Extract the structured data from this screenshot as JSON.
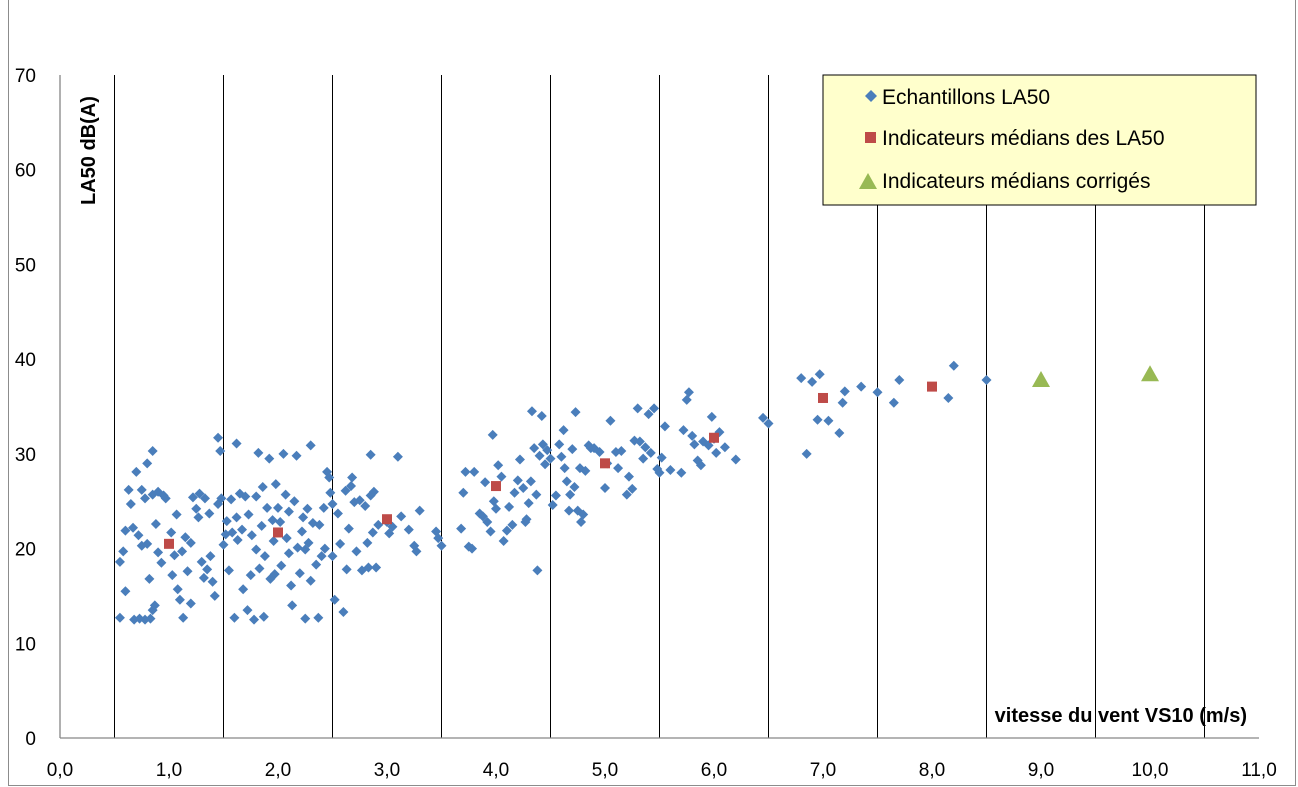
{
  "chart_data": {
    "type": "scatter",
    "title": "",
    "xlabel": "vitesse du vent  VS10 (m/s)",
    "ylabel": "LA50 dB(A)",
    "xlim": [
      0,
      11
    ],
    "ylim": [
      0,
      70
    ],
    "x_ticks": [
      "0,0",
      "1,0",
      "2,0",
      "3,0",
      "4,0",
      "5,0",
      "6,0",
      "7,0",
      "8,0",
      "9,0",
      "10,0",
      "11,0"
    ],
    "y_ticks": [
      "0",
      "10",
      "20",
      "30",
      "40",
      "50",
      "60",
      "70"
    ],
    "grid": "vertical lines at every 0.5 m/s from 0.5 to 10.5",
    "legend_position": "top-right",
    "series": [
      {
        "name": "Echantillons LA50",
        "marker": "diamond",
        "color": "#4a7ebb",
        "points": [
          [
            0.55,
            12.7
          ],
          [
            0.6,
            15.5
          ],
          [
            0.55,
            18.6
          ],
          [
            0.58,
            19.7
          ],
          [
            0.6,
            21.9
          ],
          [
            0.63,
            26.2
          ],
          [
            0.65,
            24.7
          ],
          [
            0.67,
            22.2
          ],
          [
            0.68,
            12.5
          ],
          [
            0.7,
            28.1
          ],
          [
            0.72,
            21.4
          ],
          [
            0.73,
            12.6
          ],
          [
            0.75,
            26.2
          ],
          [
            0.75,
            20.3
          ],
          [
            0.78,
            25.3
          ],
          [
            0.78,
            12.5
          ],
          [
            0.8,
            29.0
          ],
          [
            0.8,
            20.5
          ],
          [
            0.82,
            16.8
          ],
          [
            0.83,
            12.6
          ],
          [
            0.85,
            30.3
          ],
          [
            0.85,
            25.7
          ],
          [
            0.85,
            13.5
          ],
          [
            0.87,
            14.0
          ],
          [
            0.88,
            22.6
          ],
          [
            0.9,
            19.6
          ],
          [
            0.9,
            26.0
          ],
          [
            0.93,
            18.5
          ],
          [
            0.95,
            25.6
          ],
          [
            0.97,
            25.3
          ],
          [
            1.02,
            21.7
          ],
          [
            1.03,
            17.2
          ],
          [
            1.05,
            19.3
          ],
          [
            1.07,
            23.6
          ],
          [
            1.08,
            15.7
          ],
          [
            1.1,
            14.6
          ],
          [
            1.12,
            19.7
          ],
          [
            1.13,
            12.7
          ],
          [
            1.15,
            21.2
          ],
          [
            1.17,
            17.6
          ],
          [
            1.2,
            14.2
          ],
          [
            1.2,
            20.6
          ],
          [
            1.22,
            25.4
          ],
          [
            1.25,
            24.2
          ],
          [
            1.27,
            23.3
          ],
          [
            1.28,
            25.8
          ],
          [
            1.3,
            18.6
          ],
          [
            1.32,
            16.9
          ],
          [
            1.33,
            25.3
          ],
          [
            1.35,
            17.8
          ],
          [
            1.37,
            23.7
          ],
          [
            1.38,
            19.2
          ],
          [
            1.4,
            16.5
          ],
          [
            1.42,
            15.0
          ],
          [
            1.45,
            31.7
          ],
          [
            1.45,
            24.7
          ],
          [
            1.47,
            30.3
          ],
          [
            1.48,
            25.3
          ],
          [
            1.5,
            20.4
          ],
          [
            1.52,
            21.5
          ],
          [
            1.53,
            22.9
          ],
          [
            1.55,
            17.7
          ],
          [
            1.57,
            25.2
          ],
          [
            1.58,
            21.7
          ],
          [
            1.6,
            12.7
          ],
          [
            1.62,
            31.1
          ],
          [
            1.62,
            23.3
          ],
          [
            1.63,
            20.9
          ],
          [
            1.65,
            25.8
          ],
          [
            1.67,
            22.0
          ],
          [
            1.68,
            15.7
          ],
          [
            1.7,
            25.5
          ],
          [
            1.72,
            13.5
          ],
          [
            1.73,
            23.6
          ],
          [
            1.75,
            17.2
          ],
          [
            1.76,
            21.4
          ],
          [
            1.78,
            12.5
          ],
          [
            1.8,
            19.9
          ],
          [
            1.8,
            25.5
          ],
          [
            1.82,
            30.1
          ],
          [
            1.83,
            17.9
          ],
          [
            1.85,
            22.4
          ],
          [
            1.86,
            26.5
          ],
          [
            1.87,
            12.8
          ],
          [
            1.88,
            19.2
          ],
          [
            1.9,
            24.3
          ],
          [
            1.92,
            29.5
          ],
          [
            1.93,
            16.8
          ],
          [
            1.95,
            23.0
          ],
          [
            1.96,
            20.8
          ],
          [
            1.97,
            17.3
          ],
          [
            1.98,
            26.8
          ],
          [
            2.0,
            24.3
          ],
          [
            2.02,
            22.8
          ],
          [
            2.03,
            18.2
          ],
          [
            2.05,
            30.0
          ],
          [
            2.07,
            25.7
          ],
          [
            2.08,
            21.1
          ],
          [
            2.1,
            23.9
          ],
          [
            2.1,
            19.5
          ],
          [
            2.12,
            16.1
          ],
          [
            2.13,
            14.0
          ],
          [
            2.15,
            25.0
          ],
          [
            2.17,
            29.8
          ],
          [
            2.18,
            20.1
          ],
          [
            2.2,
            17.4
          ],
          [
            2.22,
            21.8
          ],
          [
            2.23,
            23.3
          ],
          [
            2.25,
            12.6
          ],
          [
            2.25,
            19.9
          ],
          [
            2.27,
            24.2
          ],
          [
            2.28,
            20.6
          ],
          [
            2.3,
            30.9
          ],
          [
            2.3,
            16.6
          ],
          [
            2.32,
            22.7
          ],
          [
            2.35,
            18.3
          ],
          [
            2.37,
            12.7
          ],
          [
            2.38,
            22.5
          ],
          [
            2.4,
            19.2
          ],
          [
            2.42,
            24.3
          ],
          [
            2.43,
            20.0
          ],
          [
            2.45,
            28.1
          ],
          [
            2.47,
            27.5
          ],
          [
            2.48,
            25.9
          ],
          [
            2.5,
            19.2
          ],
          [
            2.5,
            24.7
          ],
          [
            2.52,
            14.6
          ],
          [
            2.55,
            23.7
          ],
          [
            2.57,
            20.5
          ],
          [
            2.6,
            13.3
          ],
          [
            2.62,
            26.1
          ],
          [
            2.63,
            17.8
          ],
          [
            2.65,
            22.1
          ],
          [
            2.67,
            26.6
          ],
          [
            2.68,
            27.5
          ],
          [
            2.7,
            24.9
          ],
          [
            2.72,
            19.7
          ],
          [
            2.75,
            25.1
          ],
          [
            2.77,
            17.7
          ],
          [
            2.8,
            24.5
          ],
          [
            2.82,
            20.6
          ],
          [
            2.83,
            18.0
          ],
          [
            2.85,
            29.9
          ],
          [
            2.85,
            25.6
          ],
          [
            2.87,
            21.7
          ],
          [
            2.88,
            26.0
          ],
          [
            2.9,
            18.0
          ],
          [
            2.92,
            22.5
          ],
          [
            3.0,
            22.8
          ],
          [
            3.02,
            21.6
          ],
          [
            3.05,
            22.3
          ],
          [
            3.1,
            29.7
          ],
          [
            3.13,
            23.4
          ],
          [
            3.2,
            22.0
          ],
          [
            3.25,
            20.3
          ],
          [
            3.27,
            19.7
          ],
          [
            3.3,
            24.0
          ],
          [
            3.45,
            21.8
          ],
          [
            3.47,
            21.1
          ],
          [
            3.5,
            20.3
          ],
          [
            3.68,
            22.1
          ],
          [
            3.7,
            25.9
          ],
          [
            3.72,
            28.1
          ],
          [
            3.75,
            20.2
          ],
          [
            3.78,
            20.0
          ],
          [
            3.8,
            28.1
          ],
          [
            3.85,
            23.7
          ],
          [
            3.88,
            23.4
          ],
          [
            3.9,
            27.0
          ],
          [
            3.92,
            22.8
          ],
          [
            3.95,
            21.8
          ],
          [
            3.97,
            32.0
          ],
          [
            3.98,
            25.0
          ],
          [
            4.0,
            24.2
          ],
          [
            4.02,
            28.8
          ],
          [
            4.05,
            27.6
          ],
          [
            4.07,
            20.8
          ],
          [
            4.1,
            21.9
          ],
          [
            4.12,
            24.4
          ],
          [
            4.15,
            22.5
          ],
          [
            4.17,
            25.9
          ],
          [
            4.2,
            27.2
          ],
          [
            4.22,
            29.4
          ],
          [
            4.25,
            26.4
          ],
          [
            4.27,
            22.8
          ],
          [
            4.28,
            23.1
          ],
          [
            4.3,
            24.8
          ],
          [
            4.32,
            27.1
          ],
          [
            4.33,
            34.5
          ],
          [
            4.35,
            30.6
          ],
          [
            4.37,
            25.7
          ],
          [
            4.38,
            17.7
          ],
          [
            4.4,
            29.8
          ],
          [
            4.42,
            34.0
          ],
          [
            4.43,
            31.0
          ],
          [
            4.45,
            28.9
          ],
          [
            4.47,
            30.4
          ],
          [
            4.5,
            29.5
          ],
          [
            4.52,
            24.6
          ],
          [
            4.55,
            25.6
          ],
          [
            4.58,
            31.0
          ],
          [
            4.6,
            29.7
          ],
          [
            4.62,
            32.5
          ],
          [
            4.63,
            28.5
          ],
          [
            4.65,
            27.1
          ],
          [
            4.67,
            24.0
          ],
          [
            4.68,
            25.7
          ],
          [
            4.7,
            30.5
          ],
          [
            4.72,
            26.5
          ],
          [
            4.73,
            34.4
          ],
          [
            4.75,
            24.0
          ],
          [
            4.77,
            28.5
          ],
          [
            4.78,
            22.8
          ],
          [
            4.8,
            23.6
          ],
          [
            4.82,
            28.2
          ],
          [
            4.85,
            30.9
          ],
          [
            4.87,
            30.6
          ],
          [
            4.9,
            30.6
          ],
          [
            4.95,
            30.2
          ],
          [
            5.0,
            26.4
          ],
          [
            5.02,
            29.0
          ],
          [
            5.05,
            33.5
          ],
          [
            5.1,
            30.2
          ],
          [
            5.12,
            28.5
          ],
          [
            5.15,
            30.3
          ],
          [
            5.2,
            25.7
          ],
          [
            5.22,
            27.6
          ],
          [
            5.25,
            26.3
          ],
          [
            5.27,
            31.4
          ],
          [
            5.3,
            34.8
          ],
          [
            5.32,
            31.3
          ],
          [
            5.35,
            29.5
          ],
          [
            5.37,
            30.7
          ],
          [
            5.4,
            34.2
          ],
          [
            5.42,
            30.1
          ],
          [
            5.45,
            34.8
          ],
          [
            5.48,
            28.4
          ],
          [
            5.5,
            28.0
          ],
          [
            5.52,
            29.6
          ],
          [
            5.55,
            32.9
          ],
          [
            5.6,
            28.3
          ],
          [
            5.7,
            28.0
          ],
          [
            5.72,
            32.5
          ],
          [
            5.75,
            35.7
          ],
          [
            5.77,
            36.5
          ],
          [
            5.8,
            31.9
          ],
          [
            5.82,
            31.0
          ],
          [
            5.85,
            29.3
          ],
          [
            5.88,
            28.8
          ],
          [
            5.9,
            31.3
          ],
          [
            5.95,
            30.9
          ],
          [
            5.98,
            33.9
          ],
          [
            6.0,
            31.6
          ],
          [
            6.02,
            30.1
          ],
          [
            6.05,
            32.3
          ],
          [
            6.1,
            30.7
          ],
          [
            6.2,
            29.4
          ],
          [
            6.45,
            33.8
          ],
          [
            6.5,
            33.2
          ],
          [
            6.8,
            38.0
          ],
          [
            6.85,
            30.0
          ],
          [
            6.9,
            37.6
          ],
          [
            6.95,
            33.6
          ],
          [
            6.97,
            38.4
          ],
          [
            7.05,
            33.5
          ],
          [
            7.15,
            32.2
          ],
          [
            7.18,
            35.4
          ],
          [
            7.2,
            36.6
          ],
          [
            7.35,
            37.1
          ],
          [
            7.5,
            36.5
          ],
          [
            7.65,
            35.4
          ],
          [
            7.7,
            37.8
          ],
          [
            8.15,
            35.9
          ],
          [
            8.2,
            39.3
          ],
          [
            8.5,
            37.8
          ]
        ]
      },
      {
        "name": "Indicateurs médians des LA50",
        "marker": "square",
        "color": "#be4b48",
        "points": [
          [
            1,
            20.5
          ],
          [
            2,
            21.7
          ],
          [
            3,
            23.1
          ],
          [
            4,
            26.6
          ],
          [
            5,
            29.0
          ],
          [
            6,
            31.7
          ],
          [
            7,
            35.9
          ],
          [
            8,
            37.1
          ]
        ]
      },
      {
        "name": "Indicateurs médians corrigés",
        "marker": "triangle",
        "color": "#98b954",
        "points": [
          [
            9,
            37.8
          ],
          [
            10,
            38.4
          ]
        ]
      }
    ]
  }
}
